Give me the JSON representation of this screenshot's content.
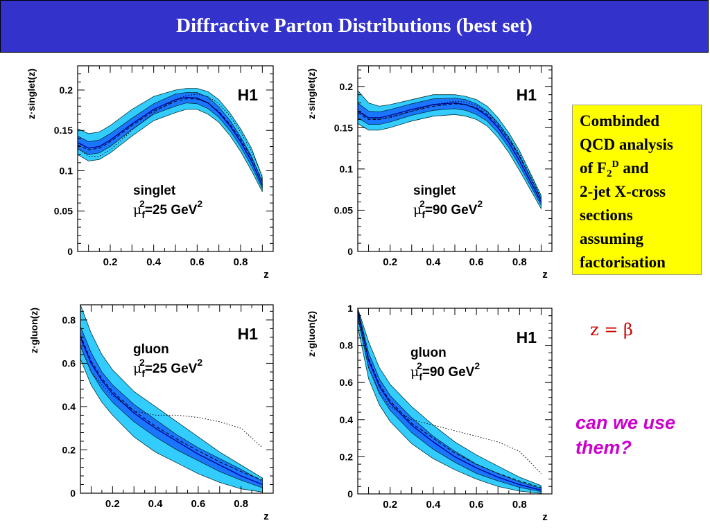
{
  "header": {
    "title": "Diffractive Parton Distributions (best set)"
  },
  "info_box": {
    "line1": "Combinded",
    "line2": "QCD analysis",
    "line3_pre": "of F",
    "line3_sub": "2",
    "line3_sup": "D",
    "line3_post": " and",
    "line4": "2-jet X-cross",
    "line5": "sections",
    "line6": "assuming",
    "line7": "factorisation"
  },
  "annotation": {
    "relation": "z = β",
    "question_line1": "can we use",
    "question_line2": "them?"
  },
  "colors": {
    "title_bg": "#3333cc",
    "outer_band": "#33ccff",
    "inner_band": "#1a75ff",
    "info_bg": "#ffff00",
    "relation_text": "#cc0000",
    "question_text": "#cc00cc"
  },
  "chart_data": [
    {
      "type": "line",
      "xlabel": "z",
      "ylabel": "z·singlet(z)",
      "experiment": "H1",
      "label_name": "singlet",
      "label_mu_pre": "μ",
      "label_mu_sub": "f",
      "label_mu_post": "=25 GeV",
      "xlim": [
        0.05,
        0.95
      ],
      "ylim": [
        0,
        0.23
      ],
      "xticks": [
        0.2,
        0.4,
        0.6,
        0.8
      ],
      "yticks": [
        0,
        0.05,
        0.1,
        0.15,
        0.2
      ],
      "ytick_labels": [
        "0",
        "0.05",
        "0.1",
        "0.15",
        "0.2"
      ],
      "x": [
        0.05,
        0.1,
        0.15,
        0.2,
        0.3,
        0.4,
        0.5,
        0.55,
        0.6,
        0.65,
        0.7,
        0.75,
        0.8,
        0.85,
        0.9
      ],
      "central": [
        0.135,
        0.128,
        0.13,
        0.138,
        0.158,
        0.176,
        0.188,
        0.191,
        0.19,
        0.184,
        0.172,
        0.156,
        0.136,
        0.112,
        0.082
      ],
      "outer_low": [
        0.12,
        0.112,
        0.114,
        0.122,
        0.143,
        0.162,
        0.172,
        0.176,
        0.176,
        0.17,
        0.16,
        0.144,
        0.124,
        0.1,
        0.074
      ],
      "outer_high": [
        0.152,
        0.146,
        0.148,
        0.156,
        0.176,
        0.192,
        0.2,
        0.202,
        0.202,
        0.198,
        0.188,
        0.172,
        0.152,
        0.128,
        0.092
      ],
      "inner_low": [
        0.127,
        0.12,
        0.122,
        0.13,
        0.151,
        0.17,
        0.18,
        0.184,
        0.183,
        0.177,
        0.166,
        0.15,
        0.13,
        0.106,
        0.078
      ],
      "inner_high": [
        0.143,
        0.136,
        0.138,
        0.146,
        0.165,
        0.183,
        0.195,
        0.197,
        0.197,
        0.191,
        0.179,
        0.163,
        0.142,
        0.118,
        0.086
      ],
      "dashed": [
        0.132,
        0.126,
        0.128,
        0.136,
        0.156,
        0.174,
        0.186,
        0.189,
        0.189,
        0.184,
        0.173,
        0.158,
        0.139,
        0.116,
        0.088
      ],
      "dotted": [
        0.128,
        0.118,
        0.118,
        0.126,
        0.15,
        0.172,
        0.188,
        0.193,
        0.195,
        0.192,
        0.183,
        0.168,
        0.148,
        0.124,
        0.094
      ]
    },
    {
      "type": "line",
      "xlabel": "z",
      "ylabel": "z·singlet(z)",
      "experiment": "H1",
      "label_name": "singlet",
      "label_mu_pre": "μ",
      "label_mu_sub": "f",
      "label_mu_post": "=90 GeV",
      "xlim": [
        0.05,
        0.95
      ],
      "ylim": [
        0,
        0.225
      ],
      "xticks": [
        0.2,
        0.4,
        0.6,
        0.8
      ],
      "yticks": [
        0,
        0.05,
        0.1,
        0.15,
        0.2
      ],
      "ytick_labels": [
        "0",
        "0.05",
        "0.1",
        "0.15",
        "0.2"
      ],
      "x": [
        0.05,
        0.1,
        0.15,
        0.2,
        0.3,
        0.4,
        0.5,
        0.55,
        0.6,
        0.65,
        0.7,
        0.75,
        0.8,
        0.85,
        0.9
      ],
      "central": [
        0.17,
        0.162,
        0.162,
        0.165,
        0.172,
        0.178,
        0.18,
        0.178,
        0.173,
        0.164,
        0.15,
        0.132,
        0.11,
        0.085,
        0.06
      ],
      "outer_low": [
        0.155,
        0.147,
        0.147,
        0.15,
        0.158,
        0.164,
        0.166,
        0.164,
        0.16,
        0.152,
        0.138,
        0.12,
        0.098,
        0.075,
        0.052
      ],
      "outer_high": [
        0.195,
        0.18,
        0.176,
        0.178,
        0.184,
        0.19,
        0.19,
        0.188,
        0.184,
        0.176,
        0.162,
        0.144,
        0.122,
        0.095,
        0.068
      ],
      "inner_low": [
        0.162,
        0.154,
        0.154,
        0.157,
        0.165,
        0.171,
        0.173,
        0.171,
        0.166,
        0.158,
        0.144,
        0.126,
        0.104,
        0.08,
        0.056
      ],
      "inner_high": [
        0.18,
        0.17,
        0.169,
        0.172,
        0.179,
        0.185,
        0.186,
        0.184,
        0.179,
        0.17,
        0.156,
        0.138,
        0.116,
        0.09,
        0.064
      ],
      "dashed": [
        0.168,
        0.16,
        0.16,
        0.163,
        0.17,
        0.176,
        0.179,
        0.178,
        0.174,
        0.166,
        0.153,
        0.136,
        0.115,
        0.09,
        0.064
      ],
      "dotted": [
        0.172,
        0.162,
        0.16,
        0.162,
        0.17,
        0.178,
        0.182,
        0.181,
        0.177,
        0.169,
        0.156,
        0.139,
        0.118,
        0.093,
        0.066
      ]
    },
    {
      "type": "line",
      "xlabel": "z",
      "ylabel": "z·gluon(z)",
      "experiment": "H1",
      "label_name": "gluon",
      "label_mu_pre": "μ",
      "label_mu_sub": "f",
      "label_mu_post": "=25 GeV",
      "xlim": [
        0.05,
        0.95
      ],
      "ylim": [
        0,
        0.87
      ],
      "xticks": [
        0.2,
        0.4,
        0.6,
        0.8
      ],
      "yticks": [
        0,
        0.2,
        0.4,
        0.6,
        0.8
      ],
      "ytick_labels": [
        "0",
        "0.2",
        "0.4",
        "0.6",
        "0.8"
      ],
      "x": [
        0.05,
        0.1,
        0.15,
        0.2,
        0.3,
        0.4,
        0.5,
        0.6,
        0.7,
        0.8,
        0.9
      ],
      "central": [
        0.72,
        0.6,
        0.52,
        0.46,
        0.37,
        0.3,
        0.24,
        0.18,
        0.13,
        0.08,
        0.04
      ],
      "outer_low": [
        0.62,
        0.5,
        0.42,
        0.36,
        0.26,
        0.19,
        0.14,
        0.09,
        0.05,
        0.02,
        0.005
      ],
      "outer_high": [
        0.87,
        0.74,
        0.64,
        0.57,
        0.47,
        0.4,
        0.33,
        0.26,
        0.19,
        0.13,
        0.07
      ],
      "inner_low": [
        0.68,
        0.56,
        0.48,
        0.42,
        0.33,
        0.26,
        0.2,
        0.15,
        0.1,
        0.06,
        0.025
      ],
      "inner_high": [
        0.77,
        0.65,
        0.56,
        0.5,
        0.41,
        0.34,
        0.27,
        0.21,
        0.16,
        0.11,
        0.055
      ],
      "dashed": [
        0.73,
        0.61,
        0.53,
        0.47,
        0.38,
        0.31,
        0.25,
        0.195,
        0.145,
        0.1,
        0.06
      ],
      "dotted": [
        0.68,
        0.56,
        0.5,
        0.45,
        0.38,
        0.36,
        0.36,
        0.35,
        0.33,
        0.3,
        0.21
      ]
    },
    {
      "type": "line",
      "xlabel": "z",
      "ylabel": "z·gluon(z)",
      "experiment": "H1",
      "label_name": "gluon",
      "label_mu_pre": "μ",
      "label_mu_sub": "f",
      "label_mu_post": "=90 GeV",
      "xlim": [
        0.05,
        0.95
      ],
      "ylim": [
        0,
        1
      ],
      "xticks": [
        0.2,
        0.4,
        0.6,
        0.8
      ],
      "yticks": [
        0,
        0.2,
        0.4,
        0.6,
        0.8,
        1
      ],
      "ytick_labels": [
        "0",
        "0.2",
        "0.4",
        "0.6",
        "0.8",
        "1"
      ],
      "x": [
        0.05,
        0.1,
        0.15,
        0.2,
        0.3,
        0.4,
        0.5,
        0.6,
        0.7,
        0.8,
        0.9
      ],
      "central": [
        0.98,
        0.72,
        0.58,
        0.49,
        0.37,
        0.28,
        0.2,
        0.14,
        0.09,
        0.05,
        0.02
      ],
      "outer_low": [
        0.9,
        0.62,
        0.48,
        0.39,
        0.27,
        0.19,
        0.13,
        0.08,
        0.04,
        0.015,
        0.003
      ],
      "outer_high": [
        1.0,
        0.82,
        0.68,
        0.59,
        0.47,
        0.37,
        0.28,
        0.21,
        0.15,
        0.09,
        0.045
      ],
      "inner_low": [
        0.95,
        0.68,
        0.54,
        0.45,
        0.33,
        0.24,
        0.17,
        0.11,
        0.07,
        0.035,
        0.012
      ],
      "inner_high": [
        1.0,
        0.76,
        0.62,
        0.53,
        0.41,
        0.31,
        0.23,
        0.16,
        0.11,
        0.065,
        0.03
      ],
      "dashed": [
        0.99,
        0.73,
        0.59,
        0.5,
        0.38,
        0.3,
        0.22,
        0.16,
        0.11,
        0.07,
        0.035
      ],
      "dotted": [
        0.96,
        0.68,
        0.55,
        0.47,
        0.4,
        0.37,
        0.34,
        0.31,
        0.28,
        0.23,
        0.11
      ]
    }
  ]
}
